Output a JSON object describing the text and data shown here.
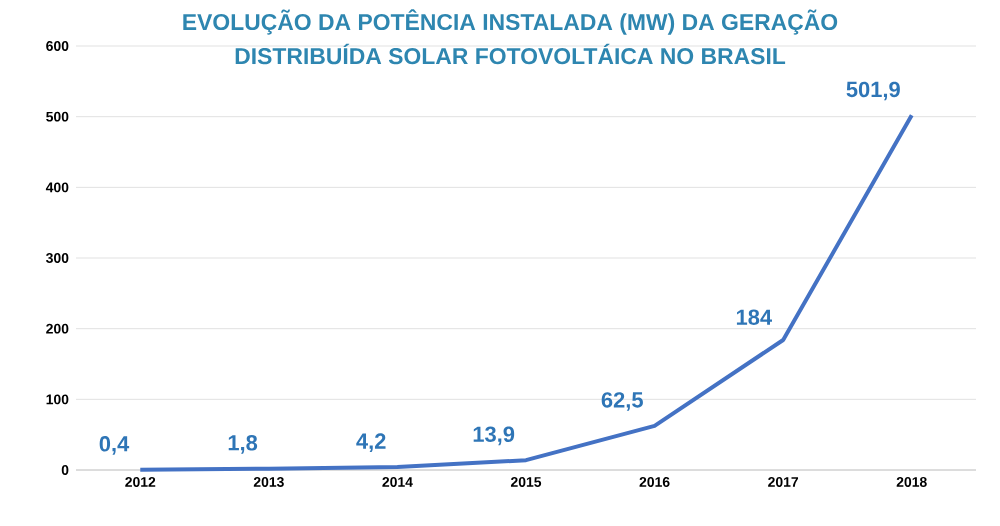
{
  "chart_data": {
    "type": "line",
    "title": "EVOLUÇÃO DA POTÊNCIA INSTALADA (MW) DA GERAÇÃO",
    "subtitle": "DISTRIBUÍDA SOLAR FOTOVOLTÁICA NO BRASIL",
    "categories": [
      "2012",
      "2013",
      "2014",
      "2015",
      "2016",
      "2017",
      "2018"
    ],
    "series": [
      {
        "color": "#4472c4",
        "values": [
          0.4,
          1.8,
          4.2,
          13.9,
          62.5,
          184,
          501.9
        ],
        "value_labels": [
          "0,4",
          "1,8",
          "4,2",
          "13,9",
          "62,5",
          "184",
          "501,9"
        ]
      }
    ],
    "ylim": [
      0,
      600
    ],
    "yticks": [
      0,
      100,
      200,
      300,
      400,
      500,
      600
    ],
    "grid": "y",
    "marker": "none",
    "line_style": "solid"
  }
}
